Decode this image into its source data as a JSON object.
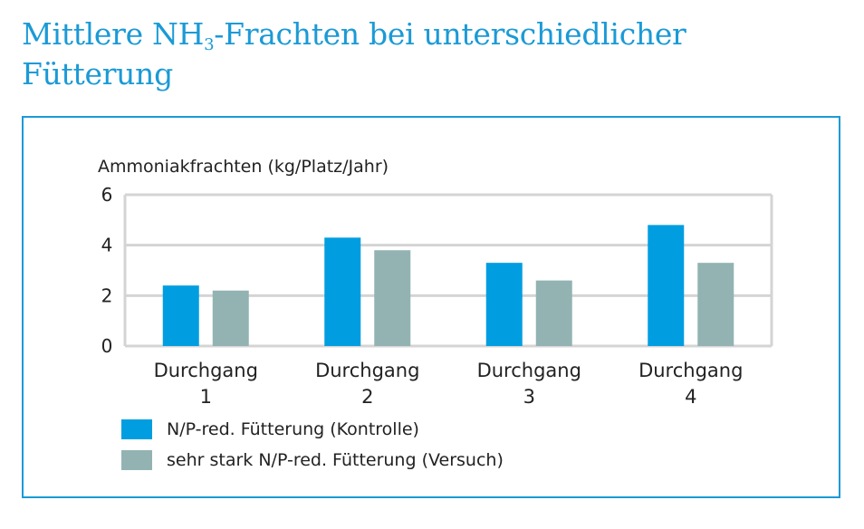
{
  "title": {
    "prefix": "Mittlere NH",
    "subscript": "3",
    "suffix": "-Frachten bei unterschiedlicher Fütterung"
  },
  "colors": {
    "kontrolle": "#009ee0",
    "versuch": "#93b3b3",
    "accent": "#1b9ad6",
    "grid": "#d4d4d4"
  },
  "chart_data": {
    "type": "bar",
    "ylabel": "Ammoniakfrachten (kg/Platz/Jahr)",
    "categories": [
      [
        "Durchgang",
        "1"
      ],
      [
        "Durchgang",
        "2"
      ],
      [
        "Durchgang",
        "3"
      ],
      [
        "Durchgang",
        "4"
      ]
    ],
    "ylim": [
      0,
      6
    ],
    "yticks": [
      0,
      2,
      4,
      6
    ],
    "grid": true,
    "legend_position": "bottom-left",
    "series": [
      {
        "name": "N/P-red. Fütterung (Kontrolle)",
        "color": "#009ee0",
        "values": [
          2.4,
          4.3,
          3.3,
          4.8
        ]
      },
      {
        "name": "sehr stark N/P-red. Fütterung (Versuch)",
        "color": "#93b3b3",
        "values": [
          2.2,
          3.8,
          2.6,
          3.3
        ]
      }
    ]
  }
}
